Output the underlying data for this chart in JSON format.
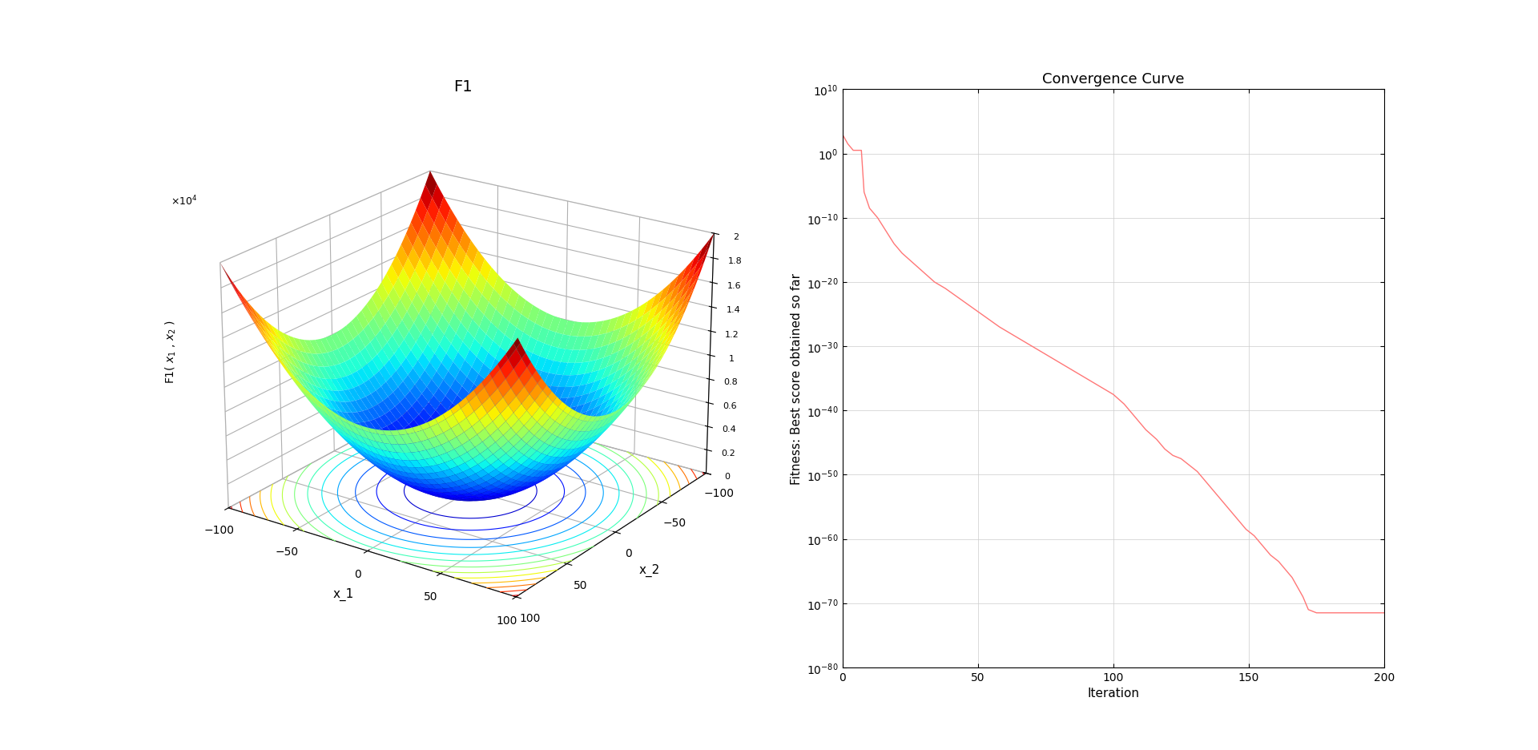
{
  "surf_title": "F1",
  "surf_xlabel": "x_1",
  "surf_ylabel": "x_2",
  "surf_zlabel": "F1( x_1 , x_2 )",
  "surf_range": [
    -100,
    100
  ],
  "surf_zlim": [
    0,
    20000
  ],
  "conv_title": "Convergence Curve",
  "conv_xlabel": "Iteration",
  "conv_ylabel": "Fitness: Best score obtained so far",
  "conv_color": "#FF7777",
  "conv_ylim_min": -80,
  "conv_ylim_max": 10,
  "conv_xlim_min": 0,
  "conv_xlim_max": 200,
  "conv_xticks": [
    0,
    50,
    100,
    150,
    200
  ],
  "conv_yticks": [
    10,
    0,
    -10,
    -20,
    -30,
    -40,
    -50,
    -60,
    -70,
    -80
  ],
  "background_color": "#ffffff",
  "key_points": [
    [
      0,
      3.0
    ],
    [
      2,
      1.5
    ],
    [
      4,
      0.5
    ],
    [
      6,
      -3.0
    ],
    [
      8,
      -6.0
    ],
    [
      10,
      -8.5
    ],
    [
      13,
      -10.0
    ],
    [
      16,
      -12.0
    ],
    [
      19,
      -14.0
    ],
    [
      22,
      -15.5
    ],
    [
      26,
      -17.0
    ],
    [
      30,
      -18.5
    ],
    [
      34,
      -20.0
    ],
    [
      38,
      -21.0
    ],
    [
      43,
      -22.5
    ],
    [
      48,
      -24.0
    ],
    [
      53,
      -25.5
    ],
    [
      58,
      -27.0
    ],
    [
      64,
      -28.5
    ],
    [
      70,
      -30.0
    ],
    [
      76,
      -31.5
    ],
    [
      82,
      -33.0
    ],
    [
      88,
      -34.5
    ],
    [
      94,
      -36.0
    ],
    [
      100,
      -37.5
    ],
    [
      104,
      -39.0
    ],
    [
      108,
      -41.0
    ],
    [
      112,
      -43.0
    ],
    [
      116,
      -44.5
    ],
    [
      119,
      -46.0
    ],
    [
      122,
      -47.0
    ],
    [
      125,
      -47.5
    ],
    [
      128,
      -48.5
    ],
    [
      131,
      -49.5
    ],
    [
      134,
      -51.0
    ],
    [
      137,
      -52.5
    ],
    [
      140,
      -54.0
    ],
    [
      143,
      -55.5
    ],
    [
      146,
      -57.0
    ],
    [
      149,
      -58.5
    ],
    [
      152,
      -59.5
    ],
    [
      155,
      -61.0
    ],
    [
      158,
      -62.5
    ],
    [
      161,
      -63.5
    ],
    [
      164,
      -65.0
    ],
    [
      166,
      -66.0
    ],
    [
      168,
      -67.5
    ],
    [
      170,
      -69.0
    ],
    [
      172,
      -71.0
    ],
    [
      175,
      -71.5
    ],
    [
      200,
      -71.5
    ]
  ]
}
